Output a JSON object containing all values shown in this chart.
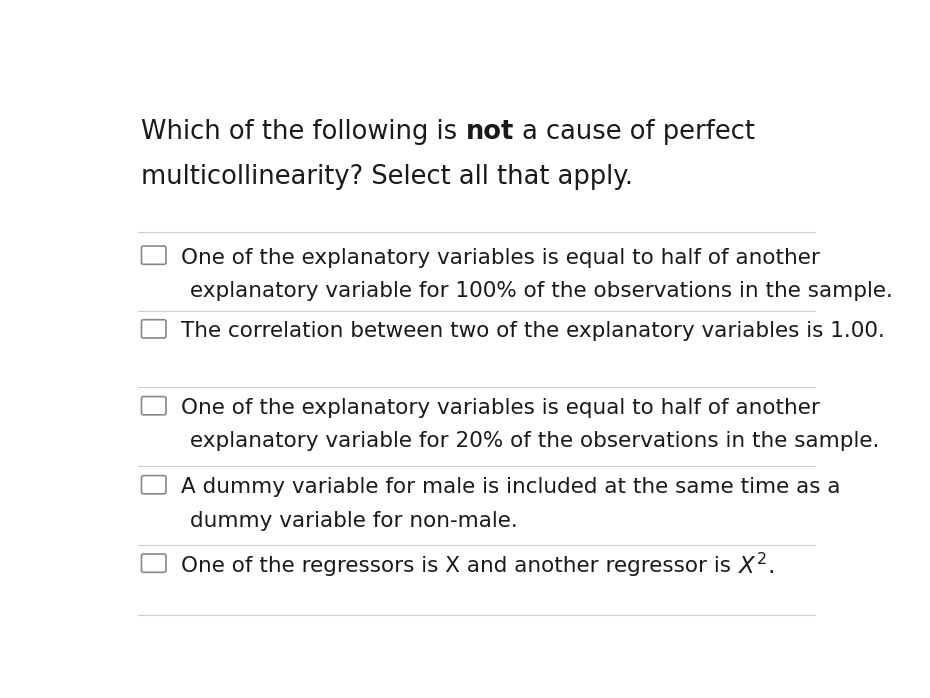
{
  "background_color": "#ffffff",
  "title_parts": [
    {
      "text": "Which of the following is ",
      "bold": false
    },
    {
      "text": "not",
      "bold": true
    },
    {
      "text": " a cause of perfect",
      "bold": false
    }
  ],
  "title_line2": "multicollinearity? Select all that apply.",
  "options": [
    {
      "line1": "One of the explanatory variables is equal to half of another",
      "line2": "explanatory variable for 100% of the observations in the sample."
    },
    {
      "line1": "The correlation between two of the explanatory variables is 1.00.",
      "line2": null
    },
    {
      "line1": "One of the explanatory variables is equal to half of another",
      "line2": "explanatory variable for 20% of the observations in the sample."
    },
    {
      "line1": "A dummy variable for male is included at the same time as a",
      "line2": "dummy variable for non-male."
    },
    {
      "line1": "One of the regressors is X and another regressor is ",
      "line2": null,
      "has_math": true,
      "math_text": "$\\mathit{X}^2$."
    }
  ],
  "divider_color": "#cccccc",
  "text_color": "#1a1a1a",
  "checkbox_color": "#ffffff",
  "checkbox_edge_color": "#888888",
  "font_size": 15.5,
  "title_font_size": 18.5
}
